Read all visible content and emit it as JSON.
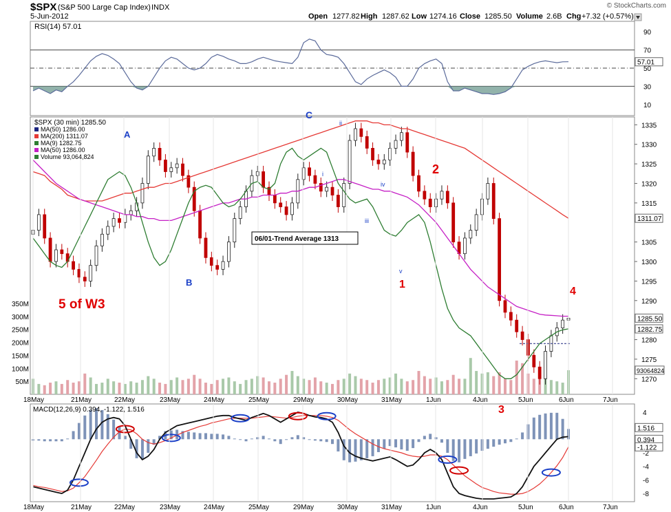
{
  "header": {
    "symbol": "$SPX",
    "name": "(S&P 500 Large Cap Index)",
    "exchange": "INDX",
    "date": "5-Jun-2012",
    "watermark": "© StockCharts.com",
    "open_label": "Open",
    "open": "1277.82",
    "high_label": "High",
    "high": "1287.62",
    "low_label": "Low",
    "low": "1274.16",
    "close_label": "Close",
    "close": "1285.50",
    "volume_label": "Volume",
    "volume": "2.6B",
    "chg_label": "Chg",
    "chg": "+7.32 (+0.57%)"
  },
  "rsi_panel": {
    "label": "RSI(14) 57.01",
    "current": 57.01,
    "ticks": [
      "90",
      "70",
      "50",
      "30",
      "10"
    ],
    "badge": "57.01"
  },
  "price_panel": {
    "title": "$SPX (30 min) 1285.50",
    "legend": [
      {
        "text": "MA(50) 1286.00",
        "color": "#1a237e"
      },
      {
        "text": "MA(200) 1311.07",
        "color": "#e53935"
      },
      {
        "text": "MA(9) 1282.75",
        "color": "#2e7d32"
      },
      {
        "text": "MA(50) 1286.00",
        "color": "#c51fc5"
      },
      {
        "text": "Volume 93,064,824",
        "color": "#2e7d32"
      }
    ],
    "ticks": [
      "1335",
      "1330",
      "1325",
      "1320",
      "1315",
      "1305",
      "1300",
      "1295",
      "1290",
      "1280",
      "1275",
      "1270"
    ],
    "badges": {
      "close": "1285.50",
      "ma9": "1282.75",
      "ma200": "1311.07",
      "volume": "93064824"
    },
    "volume_ticks": [
      "350M",
      "300M",
      "250M",
      "200M",
      "150M",
      "100M",
      "50M"
    ],
    "annotation_box": "06/01-Trend Average 1313",
    "wave_labels": [
      {
        "text": "A",
        "color": "#1a3fc7"
      },
      {
        "text": "B",
        "color": "#1a3fc7"
      },
      {
        "text": "C",
        "color": "#1a3fc7"
      },
      {
        "text": "ii",
        "color": "#1a3fc7"
      },
      {
        "text": "i",
        "color": "#1a3fc7"
      },
      {
        "text": "iii",
        "color": "#1a3fc7"
      },
      {
        "text": "iv",
        "color": "#1a3fc7"
      },
      {
        "text": "v",
        "color": "#1a3fc7"
      },
      {
        "text": "1",
        "color": "#e00000"
      },
      {
        "text": "2",
        "color": "#e00000"
      },
      {
        "text": "3",
        "color": "#e00000"
      },
      {
        "text": "4",
        "color": "#e00000"
      },
      {
        "text": "5 of W3",
        "color": "#e00000"
      }
    ]
  },
  "x_axis": {
    "labels": [
      "18May",
      "21May",
      "22May",
      "23May",
      "24May",
      "25May",
      "29May",
      "30May",
      "31May",
      "1Jun",
      "4Jun",
      "5Jun",
      "6Jun",
      "7Jun"
    ]
  },
  "macd_panel": {
    "label": "MACD(12,26,9) 0.394, -1.122, 1.516",
    "ticks": [
      "4",
      "2",
      "0",
      "-2",
      "-4",
      "-6",
      "-8"
    ],
    "badges": {
      "hist": "1.516",
      "macd": "0.394",
      "signal": "-1.122"
    }
  },
  "chart_data": {
    "type": "candlestick",
    "interval": "30 min",
    "ylim": [
      1266,
      1337
    ],
    "moving_averages": {
      "ma200": [
        1323,
        1322.5,
        1322,
        1320.5,
        1319.5,
        1318.5,
        1317,
        1316.5,
        1316,
        1315.5,
        1315.5,
        1315.5,
        1315.5,
        1316,
        1316.5,
        1317,
        1317.5,
        1317.5,
        1318,
        1318.5,
        1319,
        1319,
        1319.5,
        1320,
        1320,
        1320.5,
        1321,
        1321.5,
        1322,
        1322.5,
        1323,
        1323.5,
        1324,
        1324.5,
        1325,
        1325.5,
        1326,
        1326.5,
        1327,
        1327.5,
        1328,
        1328.5,
        1329,
        1329.5,
        1330,
        1330.5,
        1331,
        1331.5,
        1332,
        1332.5,
        1333,
        1333.5,
        1334,
        1334.5,
        1335,
        1335.5,
        1336,
        1336,
        1336,
        1335.5,
        1335.5,
        1335,
        1335,
        1334.5,
        1334,
        1334,
        1333.5,
        1333,
        1332.5,
        1332,
        1331.5,
        1331,
        1330.5,
        1330,
        1329.5,
        1329,
        1328,
        1327,
        1326,
        1325,
        1324,
        1323,
        1322,
        1321,
        1320,
        1319,
        1318,
        1317,
        1316,
        1315,
        1314,
        1313,
        1312,
        1311.07
      ],
      "ma50": [
        1326,
        1324.5,
        1323,
        1321.5,
        1320,
        1319,
        1318,
        1317,
        1316,
        1315.5,
        1315,
        1314.5,
        1314,
        1313.5,
        1313,
        1312.5,
        1312,
        1312,
        1311.5,
        1311.5,
        1311,
        1311,
        1310.5,
        1310.5,
        1310.5,
        1311,
        1311.5,
        1312,
        1312.5,
        1313,
        1313.5,
        1314,
        1314.5,
        1315,
        1315,
        1315.5,
        1316,
        1316,
        1316.5,
        1316.5,
        1317,
        1317,
        1317,
        1317.5,
        1317.5,
        1318,
        1318,
        1318.5,
        1319,
        1319,
        1319.5,
        1320,
        1320.5,
        1321,
        1321,
        1320.5,
        1320,
        1319.5,
        1319,
        1318.5,
        1318.5,
        1318,
        1318,
        1317.5,
        1317,
        1316.5,
        1315.5,
        1314.5,
        1313,
        1311.5,
        1310,
        1308,
        1306,
        1304,
        1302,
        1300,
        1298,
        1296.5,
        1295,
        1293.5,
        1292.5,
        1291.5,
        1290.5,
        1289.5,
        1288.5,
        1288,
        1287.5,
        1287,
        1286.5,
        1286.3,
        1286.2,
        1286.1,
        1286.0,
        1286.0
      ],
      "ma9": [
        1306,
        1304,
        1302,
        1300,
        1299,
        1298.5,
        1300,
        1303,
        1306,
        1309,
        1312,
        1315,
        1318,
        1321,
        1322,
        1323,
        1322,
        1319,
        1315,
        1310,
        1305,
        1301,
        1299,
        1300,
        1303,
        1307,
        1311,
        1315,
        1318,
        1319,
        1319.5,
        1319,
        1317,
        1315,
        1314,
        1314.5,
        1316,
        1318,
        1320,
        1320.5,
        1319,
        1318.5,
        1320,
        1325,
        1328,
        1329,
        1327,
        1326,
        1327,
        1328,
        1329,
        1328,
        1324,
        1320,
        1318,
        1316,
        1315,
        1315.5,
        1316,
        1314,
        1311,
        1308,
        1307,
        1306.5,
        1308,
        1310,
        1311,
        1312,
        1310,
        1305,
        1299,
        1293,
        1288,
        1285,
        1283,
        1282,
        1281,
        1279,
        1277,
        1275,
        1273,
        1271,
        1270,
        1270,
        1271,
        1273,
        1275,
        1277,
        1279,
        1280,
        1281,
        1282,
        1282.5,
        1282.75
      ]
    },
    "ma200_final": 1311.07,
    "ma50_final": 1286.0,
    "ma9_final": 1282.75,
    "close_final": 1285.5,
    "closes": [
      1308,
      1312,
      1306,
      1300,
      1303,
      1302,
      1300,
      1298,
      1296,
      1295,
      1299,
      1304,
      1307,
      1309,
      1311,
      1310,
      1312,
      1313,
      1315,
      1320,
      1327,
      1329,
      1326,
      1323,
      1324,
      1325,
      1322,
      1319,
      1313,
      1306,
      1301,
      1299,
      1298,
      1300,
      1305,
      1311,
      1314,
      1318,
      1322,
      1323,
      1319,
      1317,
      1315,
      1314,
      1312,
      1315,
      1321,
      1324,
      1322,
      1320,
      1318,
      1319,
      1317,
      1314,
      1320,
      1331,
      1334,
      1332,
      1329,
      1326,
      1325,
      1326,
      1329,
      1331,
      1333,
      1328,
      1322,
      1318,
      1316,
      1314,
      1316,
      1318,
      1315,
      1305,
      1302,
      1306,
      1308,
      1312,
      1316,
      1320,
      1311,
      1290,
      1287,
      1285,
      1282,
      1280,
      1276,
      1273,
      1270,
      1277,
      1281,
      1283,
      1285,
      1285.5
    ],
    "volume_m": [
      60,
      40,
      35,
      45,
      50,
      40,
      55,
      45,
      50,
      80,
      65,
      40,
      45,
      60,
      50,
      45,
      40,
      50,
      45,
      55,
      70,
      60,
      45,
      40,
      55,
      65,
      55,
      60,
      75,
      60,
      45,
      40,
      55,
      60,
      65,
      50,
      40,
      55,
      60,
      70,
      65,
      50,
      45,
      60,
      75,
      90,
      70,
      60,
      55,
      65,
      50,
      45,
      40,
      55,
      60,
      80,
      70,
      60,
      55,
      45,
      55,
      60,
      65,
      80,
      60,
      50,
      55,
      90,
      70,
      60,
      65,
      50,
      55,
      75,
      60,
      60,
      140,
      90,
      80,
      85,
      70,
      85,
      60,
      55,
      130,
      120,
      80,
      60,
      60,
      70,
      55,
      50,
      45,
      93
    ],
    "rsi": [
      25,
      28,
      25,
      22,
      26,
      24,
      30,
      35,
      42,
      50,
      58,
      63,
      66,
      64,
      60,
      55,
      45,
      35,
      28,
      26,
      30,
      40,
      50,
      58,
      62,
      60,
      55,
      50,
      48,
      50,
      55,
      62,
      65,
      63,
      60,
      58,
      55,
      55,
      57,
      60,
      62,
      60,
      58,
      57,
      56,
      55,
      62,
      78,
      82,
      80,
      70,
      65,
      64,
      62,
      55,
      45,
      35,
      32,
      38,
      42,
      45,
      48,
      45,
      40,
      30,
      30,
      38,
      50,
      55,
      58,
      60,
      55,
      35,
      25,
      25,
      28,
      26,
      24,
      22,
      22,
      21,
      22,
      24,
      28,
      38,
      48,
      52,
      55,
      57,
      58,
      57,
      56,
      57,
      57.01
    ],
    "macd": [
      -7,
      -7.2,
      -7.4,
      -7.6,
      -7.8,
      -8,
      -7.5,
      -6,
      -4,
      -2,
      0,
      1.5,
      2.5,
      3,
      3.2,
      3,
      2,
      0,
      -2,
      -3,
      -2.5,
      -1.5,
      0,
      1,
      1.5,
      2,
      2.2,
      2.4,
      2.6,
      2.8,
      3,
      3.2,
      3.4,
      3.5,
      3.5,
      3.2,
      3,
      2.8,
      3.2,
      3.5,
      3.8,
      3.5,
      3,
      2.5,
      3,
      3.5,
      4,
      3.8,
      3.5,
      3.3,
      3.2,
      3,
      2.5,
      1,
      -1,
      -2,
      -2.5,
      -2.8,
      -3,
      -3.2,
      -3,
      -2.8,
      -2.6,
      -3,
      -3.5,
      -4,
      -3.8,
      -3,
      -2,
      -1.5,
      -2,
      -3,
      -5,
      -7,
      -8,
      -8.3,
      -8.5,
      -8.7,
      -8.8,
      -8.8,
      -8.8,
      -8.7,
      -8.6,
      -8.5,
      -8,
      -7,
      -5.5,
      -4,
      -3,
      -2,
      -1,
      0,
      0.3,
      0.394
    ],
    "signal": [
      -6.8,
      -7,
      -7.1,
      -7.3,
      -7.5,
      -7.7,
      -7.6,
      -7.2,
      -6.4,
      -5.5,
      -4.3,
      -3.1,
      -1.8,
      -0.7,
      0.3,
      1.1,
      1.5,
      1.4,
      0.8,
      0,
      -0.5,
      -0.7,
      -0.5,
      -0.2,
      0.2,
      0.6,
      1,
      1.3,
      1.6,
      1.9,
      2.1,
      2.4,
      2.6,
      2.8,
      3,
      3.1,
      3.1,
      3.1,
      3.1,
      3.2,
      3.3,
      3.4,
      3.3,
      3.2,
      3.1,
      3.2,
      3.4,
      3.5,
      3.5,
      3.5,
      3.5,
      3.4,
      3.2,
      2.8,
      2.1,
      1.4,
      0.8,
      0.3,
      -0.2,
      -0.7,
      -1.1,
      -1.4,
      -1.6,
      -1.8,
      -2,
      -2.3,
      -2.5,
      -2.6,
      -2.5,
      -2.3,
      -2.3,
      -2.5,
      -3,
      -3.8,
      -4.6,
      -5.4,
      -6,
      -6.6,
      -7.1,
      -7.4,
      -7.7,
      -7.9,
      -8,
      -8.1,
      -8.1,
      -8,
      -7.7,
      -7.2,
      -6.6,
      -5.8,
      -4.9,
      -3.9,
      -2.7,
      -1.122
    ],
    "macd_ylim": [
      -9,
      5
    ],
    "rsi_ylim": [
      0,
      100
    ]
  }
}
